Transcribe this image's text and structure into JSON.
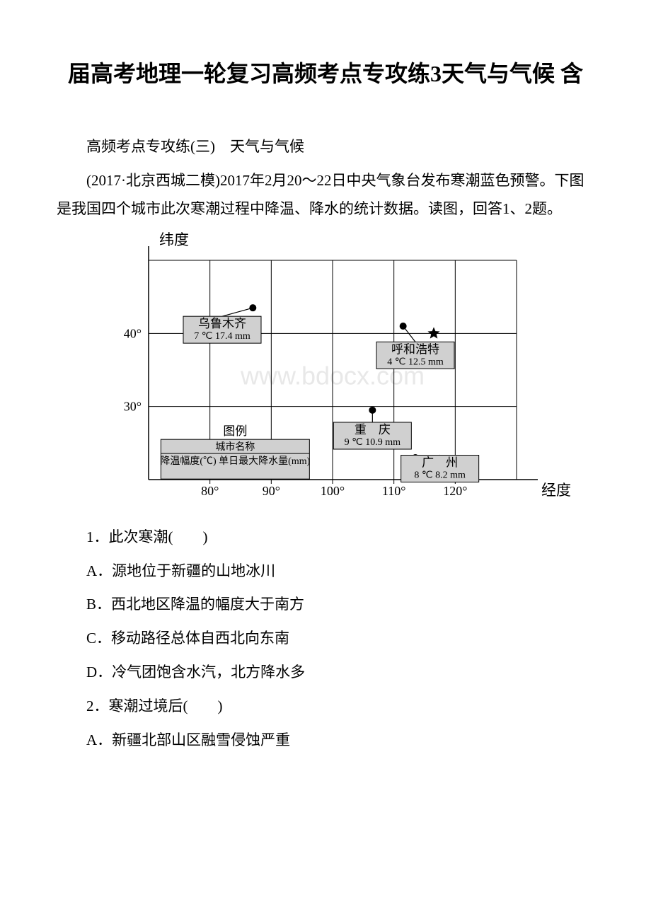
{
  "title": "届高考地理一轮复习高频考点专攻练3天气与气候 含",
  "subtitle": "高频考点专攻练(三)　天气与气候",
  "intro": "(2017·北京西城二模)2017年2月20～22日中央气象台发布寒潮蓝色预警。下图是我国四个城市此次寒潮过程中降温、降水的统计数据。读图，回答1、2题。",
  "chart": {
    "y_axis_label": "纬度",
    "x_axis_label": "经度",
    "x_ticks": [
      "80°",
      "90°",
      "100°",
      "110°",
      "120°"
    ],
    "y_ticks": [
      "30°",
      "40°"
    ],
    "grid_color": "#000000",
    "background_color": "#ffffff",
    "box_fill": "#d0d0d0",
    "x_range": [
      70,
      130
    ],
    "y_range": [
      20,
      50
    ],
    "cities": [
      {
        "name": "乌鲁木齐",
        "lon": 87,
        "lat": 43.5,
        "temp": "7 ℃",
        "precip": "17.4 mm",
        "box_dx": -5,
        "box_dy": 3
      },
      {
        "name": "呼和浩特",
        "lon": 111.5,
        "lat": 41,
        "temp": "4 ℃",
        "precip": "12.5 mm",
        "box_dx": 2,
        "box_dy": 4
      },
      {
        "name": "重　庆",
        "lon": 106.5,
        "lat": 29.5,
        "temp": "9 ℃",
        "precip": "10.9 mm",
        "box_dx": 0,
        "box_dy": 3.5
      },
      {
        "name": "广　州",
        "lon": 113.5,
        "lat": 23,
        "temp": "8 ℃",
        "precip": "8.2 mm",
        "box_dx": 4,
        "box_dy": 1.5
      }
    ],
    "star": {
      "lon": 116.5,
      "lat": 40
    },
    "legend": {
      "title": "图例",
      "line1": "城市名称",
      "line2": "降温幅度(℃) 单日最大降水量(mm)"
    },
    "watermark": "www.bdocx.com"
  },
  "q1": {
    "stem": "1．此次寒潮(　　)",
    "A": "A．源地位于新疆的山地冰川",
    "B": "B．西北地区降温的幅度大于南方",
    "C": "C．移动路径总体自西北向东南",
    "D": "D．冷气团饱含水汽，北方降水多"
  },
  "q2": {
    "stem": "2．寒潮过境后(　　)",
    "A": "A．新疆北部山区融雪侵蚀严重"
  }
}
